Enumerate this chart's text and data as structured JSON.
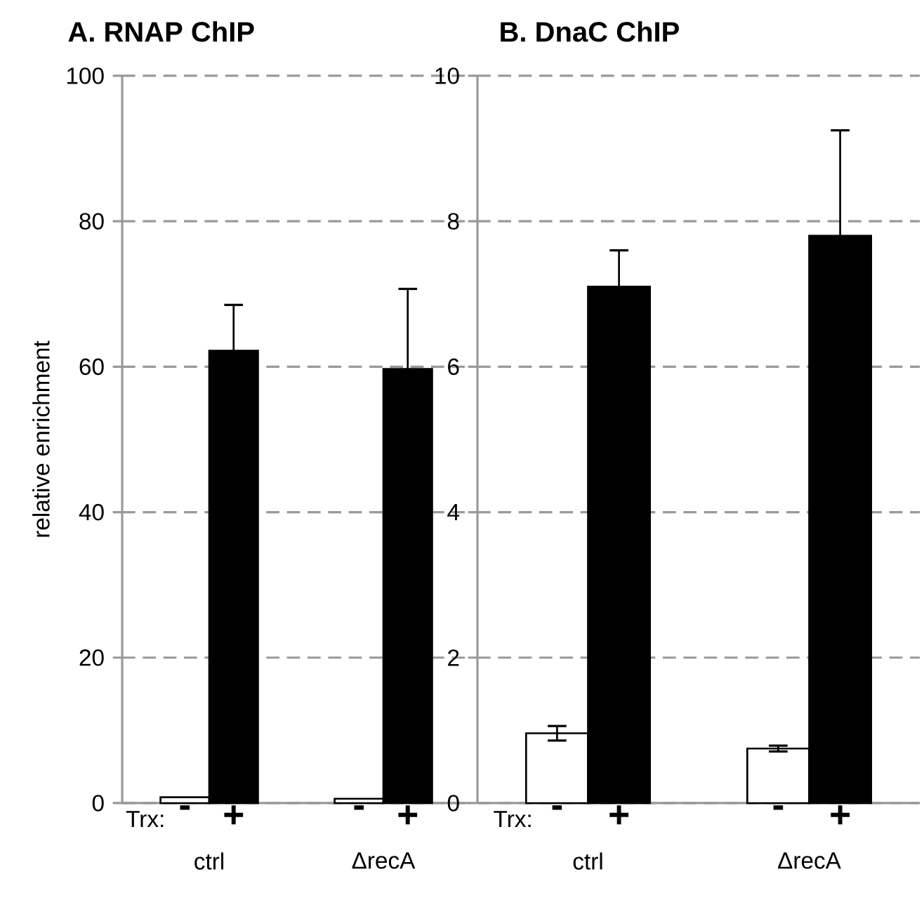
{
  "chart_data": [
    {
      "type": "bar",
      "title": "A. RNAP ChIP",
      "ylabel": "relative enrichment",
      "legend_title": "Trx:",
      "categories": [
        "ctrl",
        "ΔrecA"
      ],
      "series": [
        {
          "name": "-",
          "color": "#ffffff",
          "values": [
            0.8,
            0.6
          ]
        },
        {
          "name": "+",
          "color": "#000000",
          "values": [
            62.2,
            59.7
          ],
          "errors": [
            6.3,
            11
          ]
        }
      ],
      "ylim": [
        0,
        100
      ],
      "yticks": [
        0,
        20,
        40,
        60,
        80,
        100
      ],
      "grid": "y"
    },
    {
      "type": "bar",
      "title": "B. DnaC ChIP",
      "legend_title": "Trx:",
      "categories": [
        "ctrl",
        "ΔrecA"
      ],
      "series": [
        {
          "name": "-",
          "color": "#ffffff",
          "values": [
            0.96,
            0.75
          ],
          "errors": [
            0.1,
            0.04
          ]
        },
        {
          "name": "+",
          "color": "#000000",
          "values": [
            7.1,
            7.8
          ],
          "errors": [
            0.5,
            1.45
          ]
        }
      ],
      "ylim": [
        0,
        10
      ],
      "yticks": [
        0,
        2,
        4,
        6,
        8,
        10
      ],
      "grid": "y"
    }
  ]
}
